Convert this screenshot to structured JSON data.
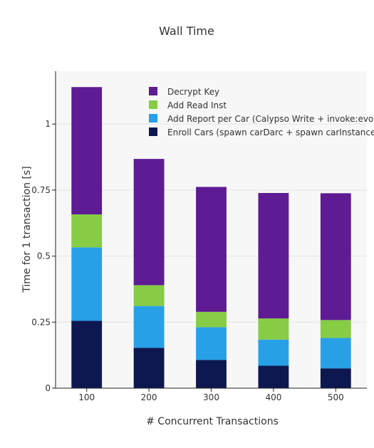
{
  "chart_data": {
    "type": "bar",
    "stacked": true,
    "title": "Wall Time",
    "xlabel": "# Concurrent Transactions",
    "ylabel": "Time for 1 transaction [s]",
    "categories": [
      "100",
      "200",
      "300",
      "400",
      "500"
    ],
    "ylim": [
      0,
      1.2
    ],
    "yticks": [
      0,
      0.25,
      0.5,
      0.75,
      1
    ],
    "ytick_labels": [
      "0",
      "0.25",
      "0.5",
      "0.75",
      "1"
    ],
    "grid": true,
    "legend_position": "top-right",
    "series": [
      {
        "name": "Enroll Cars (spawn carDarc + spawn carInstance)",
        "color": "#0d1850",
        "values": [
          0.255,
          0.153,
          0.107,
          0.085,
          0.075
        ]
      },
      {
        "name": "Add Report per Car (Calypso Write + invoke:evolve)",
        "color": "#27a0e8",
        "values": [
          0.278,
          0.158,
          0.124,
          0.099,
          0.115
        ]
      },
      {
        "name": "Add Read Inst",
        "color": "#86cc45",
        "values": [
          0.125,
          0.079,
          0.058,
          0.08,
          0.068
        ]
      },
      {
        "name": "Decrypt Key",
        "color": "#5e1b93",
        "values": [
          0.482,
          0.478,
          0.473,
          0.475,
          0.48
        ]
      }
    ]
  }
}
